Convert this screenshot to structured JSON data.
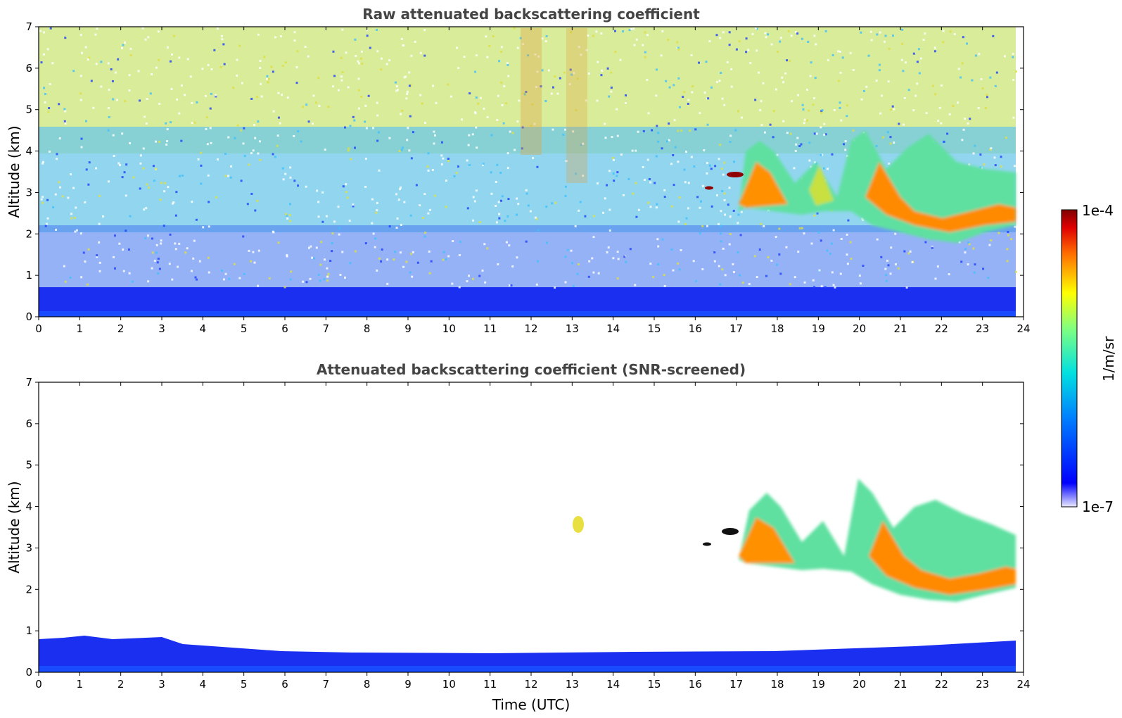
{
  "chart_data": [
    {
      "type": "heatmap",
      "title": "Raw attenuated backscattering coefficient",
      "xlabel": "",
      "ylabel": "Altitude (km)",
      "xlim": [
        0,
        24
      ],
      "ylim": [
        0,
        7
      ],
      "xticks": [
        "0",
        "1",
        "2",
        "3",
        "4",
        "5",
        "6",
        "7",
        "8",
        "9",
        "10",
        "11",
        "12",
        "13",
        "14",
        "15",
        "16",
        "17",
        "18",
        "19",
        "20",
        "21",
        "22",
        "23",
        "24"
      ],
      "yticks": [
        "0",
        "1",
        "2",
        "3",
        "4",
        "5",
        "6",
        "7"
      ],
      "features": [
        {
          "kind": "boundary_layer",
          "x": [
            0,
            23.8
          ],
          "y": [
            0,
            0.7
          ],
          "level": "low"
        },
        {
          "kind": "cirrus_cloud",
          "x": [
            17,
            23.8
          ],
          "y": [
            1.8,
            4.2
          ],
          "level": "high"
        },
        {
          "kind": "noisy_background",
          "x": [
            0,
            23.8
          ],
          "y": [
            0.7,
            7
          ],
          "level": "medium"
        }
      ]
    },
    {
      "type": "heatmap",
      "title": "Attenuated backscattering coefficient (SNR-screened)",
      "xlabel": "Time (UTC)",
      "ylabel": "Altitude (km)",
      "xlim": [
        0,
        24
      ],
      "ylim": [
        0,
        7
      ],
      "xticks": [
        "0",
        "1",
        "2",
        "3",
        "4",
        "5",
        "6",
        "7",
        "8",
        "9",
        "10",
        "11",
        "12",
        "13",
        "14",
        "15",
        "16",
        "17",
        "18",
        "19",
        "20",
        "21",
        "22",
        "23",
        "24"
      ],
      "yticks": [
        "0",
        "1",
        "2",
        "3",
        "4",
        "5",
        "6",
        "7"
      ],
      "features": [
        {
          "kind": "boundary_layer",
          "x": [
            0,
            23.8
          ],
          "y": [
            0,
            0.8
          ],
          "level": "low"
        },
        {
          "kind": "cirrus_cloud",
          "x": [
            17,
            23.8
          ],
          "y": [
            1.7,
            4.8
          ],
          "level": "high"
        },
        {
          "kind": "cloud_patch",
          "x": [
            12.9,
            13.3
          ],
          "y": [
            3.3,
            3.8
          ],
          "level": "medium-high"
        }
      ]
    }
  ],
  "colorbar": {
    "label": "1/m/sr",
    "max_label": "1e-4",
    "min_label": "1e-7",
    "scale": "log",
    "range": [
      1e-07,
      0.0001
    ],
    "colormap": "jet"
  }
}
